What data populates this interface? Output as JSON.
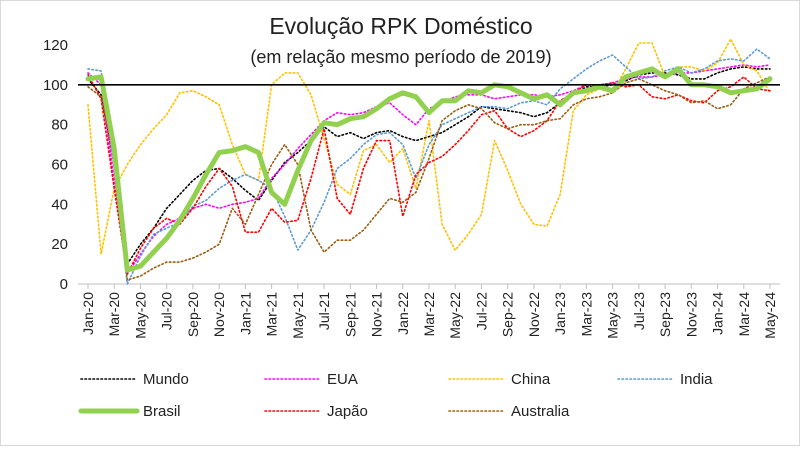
{
  "chart_data": {
    "type": "line",
    "title": "Evolução RPK Doméstico",
    "subtitle": "(em relação mesmo período de 2019)",
    "xlabel": "",
    "ylabel": "",
    "ylim": [
      0,
      120
    ],
    "yticks": [
      0,
      20,
      40,
      60,
      80,
      100,
      120
    ],
    "reference_line": 100,
    "grid": false,
    "legend_position": "bottom",
    "x": [
      "Jan-20",
      "Feb-20",
      "Mar-20",
      "Apr-20",
      "May-20",
      "Jun-20",
      "Jul-20",
      "Aug-20",
      "Sep-20",
      "Oct-20",
      "Nov-20",
      "Dec-20",
      "Jan-21",
      "Feb-21",
      "Mar-21",
      "Apr-21",
      "May-21",
      "Jun-21",
      "Jul-21",
      "Aug-21",
      "Sep-21",
      "Oct-21",
      "Nov-21",
      "Dec-21",
      "Jan-22",
      "Feb-22",
      "Mar-22",
      "Apr-22",
      "May-22",
      "Jun-22",
      "Jul-22",
      "Aug-22",
      "Sep-22",
      "Oct-22",
      "Nov-22",
      "Dec-22",
      "Jan-23",
      "Feb-23",
      "Mar-23",
      "Apr-23",
      "May-23",
      "Jun-23",
      "Jul-23",
      "Aug-23",
      "Sep-23",
      "Oct-23",
      "Nov-23",
      "Dec-23",
      "Jan-24",
      "Feb-24",
      "Mar-24",
      "Apr-24",
      "May-24"
    ],
    "xtick_labels": [
      "Jan-20",
      "Mar-20",
      "May-20",
      "Jul-20",
      "Sep-20",
      "Nov-20",
      "Jan-21",
      "Mar-21",
      "May-21",
      "Jul-21",
      "Sep-21",
      "Nov-21",
      "Jan-22",
      "Mar-22",
      "May-22",
      "Jul-22",
      "Sep-22",
      "Nov-22",
      "Jan-23",
      "Mar-23",
      "May-23",
      "Jul-23",
      "Sep-23",
      "Nov-23",
      "Jan-24",
      "Mar-24",
      "May-24"
    ],
    "series": [
      {
        "name": "Mundo",
        "color": "#000000",
        "style": "dotted",
        "values": [
          103,
          95,
          60,
          10,
          20,
          28,
          38,
          45,
          52,
          57,
          58,
          53,
          47,
          42,
          52,
          61,
          66,
          72,
          79,
          74,
          76,
          73,
          76,
          77,
          74,
          72,
          74,
          76,
          80,
          84,
          89,
          88,
          87,
          86,
          84,
          86,
          91,
          95,
          99,
          99,
          100,
          102,
          105,
          106,
          106,
          105,
          103,
          103,
          106,
          108,
          109,
          108,
          108
        ]
      },
      {
        "name": "EUA",
        "color": "#ff00ff",
        "style": "dotted",
        "values": [
          106,
          100,
          52,
          5,
          15,
          24,
          30,
          33,
          38,
          40,
          38,
          40,
          41,
          43,
          53,
          60,
          68,
          75,
          82,
          86,
          85,
          86,
          89,
          91,
          85,
          80,
          88,
          91,
          94,
          95,
          95,
          93,
          94,
          95,
          95,
          94,
          95,
          97,
          100,
          99,
          101,
          103,
          104,
          104,
          105,
          106,
          106,
          107,
          108,
          109,
          110,
          109,
          110
        ]
      },
      {
        "name": "China",
        "color": "#ffc000",
        "style": "dotted",
        "values": [
          90,
          15,
          48,
          60,
          70,
          78,
          85,
          96,
          97,
          94,
          90,
          70,
          55,
          52,
          100,
          106,
          106,
          95,
          73,
          50,
          45,
          67,
          70,
          61,
          68,
          48,
          82,
          30,
          17,
          25,
          35,
          72,
          57,
          40,
          30,
          29,
          45,
          87,
          95,
          98,
          96,
          108,
          121,
          121,
          104,
          109,
          109,
          107,
          111,
          123,
          110,
          107,
          96
        ]
      },
      {
        "name": "India",
        "color": "#5b9bd5",
        "style": "dotted",
        "values": [
          108,
          107,
          58,
          0,
          14,
          25,
          28,
          31,
          39,
          42,
          48,
          52,
          55,
          52,
          48,
          34,
          17,
          27,
          41,
          58,
          63,
          70,
          75,
          76,
          70,
          53,
          70,
          80,
          83,
          86,
          89,
          89,
          88,
          91,
          92,
          90,
          98,
          103,
          108,
          112,
          115,
          109,
          103,
          104,
          107,
          109,
          106,
          108,
          112,
          113,
          112,
          118,
          113
        ]
      },
      {
        "name": "Brasil",
        "color": "#92d050",
        "style": "solid",
        "width": 5,
        "values": [
          103,
          104,
          68,
          7,
          9,
          16,
          23,
          32,
          43,
          55,
          66,
          67,
          69,
          66,
          46,
          40,
          57,
          72,
          81,
          80,
          83,
          84,
          88,
          93,
          96,
          94,
          86,
          92,
          92,
          97,
          96,
          100,
          99,
          96,
          93,
          95,
          90,
          96,
          97,
          99,
          97,
          104,
          106,
          108,
          104,
          108,
          100,
          100,
          99,
          96,
          97,
          98,
          103
        ]
      },
      {
        "name": "Japão",
        "color": "#ff0000",
        "style": "dotted",
        "values": [
          105,
          93,
          48,
          5,
          18,
          28,
          33,
          30,
          38,
          49,
          58,
          49,
          26,
          26,
          38,
          31,
          32,
          53,
          78,
          43,
          35,
          58,
          72,
          72,
          34,
          55,
          61,
          64,
          70,
          77,
          85,
          87,
          78,
          74,
          77,
          82,
          92,
          96,
          100,
          100,
          101,
          99,
          100,
          94,
          93,
          95,
          92,
          91,
          97,
          99,
          104,
          98,
          97
        ]
      },
      {
        "name": "Australia",
        "color": "#9c5c12",
        "style": "dotted",
        "values": [
          99,
          94,
          65,
          2,
          4,
          8,
          11,
          11,
          13,
          16,
          20,
          38,
          30,
          45,
          60,
          70,
          60,
          27,
          16,
          22,
          22,
          27,
          35,
          43,
          41,
          46,
          63,
          82,
          87,
          90,
          88,
          81,
          78,
          80,
          80,
          82,
          83,
          90,
          93,
          94,
          96,
          101,
          103,
          100,
          97,
          95,
          91,
          92,
          88,
          90,
          98,
          101,
          104
        ]
      }
    ]
  }
}
